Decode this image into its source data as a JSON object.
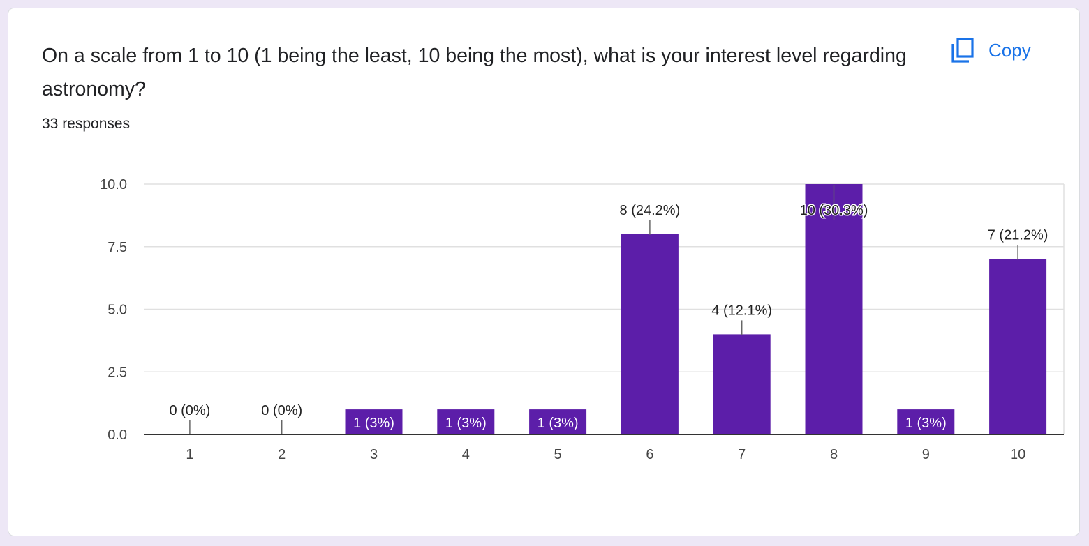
{
  "question": {
    "title": "On a scale from 1 to 10 (1 being the least, 10 being the most), what is your interest level regarding astronomy?",
    "responses": "33 responses"
  },
  "copy_button": {
    "label": "Copy",
    "icon": "copy-icon"
  },
  "colors": {
    "bar": "#5c1ea9",
    "accent": "#1a73e8",
    "background": "#ede7f6"
  },
  "chart_data": {
    "type": "bar",
    "categories": [
      "1",
      "2",
      "3",
      "4",
      "5",
      "6",
      "7",
      "8",
      "9",
      "10"
    ],
    "values": [
      0,
      0,
      1,
      1,
      1,
      8,
      4,
      10,
      1,
      7
    ],
    "data_labels": [
      "0 (0%)",
      "0 (0%)",
      "1 (3%)",
      "1 (3%)",
      "1 (3%)",
      "8 (24.2%)",
      "4 (12.1%)",
      "10 (30.3%)",
      "1 (3%)",
      "7 (21.2%)"
    ],
    "y_ticks": [
      "0.0",
      "2.5",
      "5.0",
      "7.5",
      "10.0"
    ],
    "ylim": [
      0,
      10
    ],
    "grid": true,
    "legend": "none"
  }
}
